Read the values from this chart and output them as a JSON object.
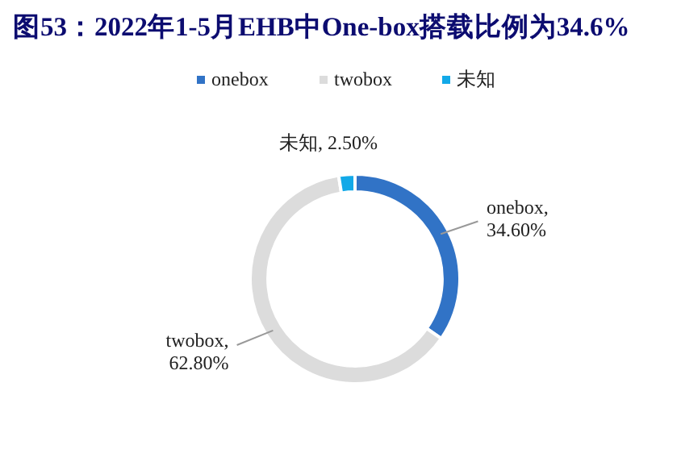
{
  "chart_data": {
    "type": "donut",
    "title": "图53：2022年1-5月EHB中One-box搭载比例为34.6%",
    "categories": [
      "onebox",
      "twobox",
      "未知"
    ],
    "values": [
      34.6,
      62.8,
      2.5
    ],
    "colors": [
      "#3173c6",
      "#dcdcdc",
      "#12a9e8"
    ],
    "value_labels": [
      "onebox, 34.60%",
      "twobox, 62.80%",
      "未知, 2.50%"
    ],
    "legend": "top"
  }
}
